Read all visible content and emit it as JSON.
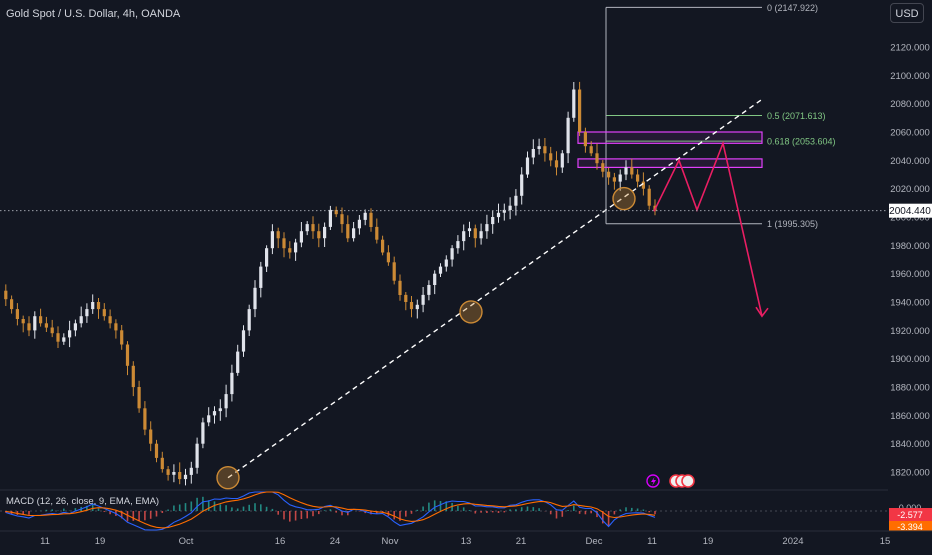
{
  "header": {
    "title": "Gold Spot / U.S. Dollar, 4h, OANDA",
    "currency": "USD"
  },
  "chart_data": {
    "type": "line",
    "title": "Gold Spot / U.S. Dollar, 4h, OANDA",
    "series": [
      {
        "values": [
          1948,
          1942,
          1935,
          1928,
          1925,
          1920,
          1930,
          1925,
          1922,
          1918,
          1912,
          1915,
          1920,
          1925,
          1930,
          1935,
          1940,
          1935,
          1930,
          1925,
          1920,
          1910,
          1895,
          1880,
          1865,
          1850,
          1840,
          1830,
          1822,
          1818,
          1820,
          1815,
          1818,
          1823,
          1840,
          1855,
          1860,
          1863,
          1865,
          1875,
          1890,
          1905,
          1920,
          1935,
          1950,
          1965,
          1978,
          1990,
          1985,
          1978,
          1975,
          1982,
          1990,
          1995,
          1990,
          1985,
          1993,
          2005,
          2002,
          1995,
          1985,
          1992,
          1998,
          2003,
          1993,
          1984,
          1975,
          1968,
          1955,
          1945,
          1940,
          1935,
          1938,
          1945,
          1952,
          1960,
          1965,
          1970,
          1978,
          1983,
          1990,
          1992,
          1985,
          1990,
          1995,
          2000,
          2003,
          2005,
          2008,
          2015,
          2030,
          2042,
          2048,
          2050,
          2045,
          2040,
          2035,
          2045,
          2070,
          2090,
          2060,
          2050,
          2045,
          2038,
          2032,
          2028,
          2025,
          2030,
          2035,
          2030,
          2025,
          2020,
          2008,
          2004.44
        ]
      }
    ],
    "current_price": "2004.440",
    "y_ticks": [
      "2120.000",
      "2100.000",
      "2080.000",
      "2060.000",
      "2040.000",
      "2020.000",
      "2000.000",
      "1980.000",
      "1960.000",
      "1940.000",
      "1920.000",
      "1900.000",
      "1880.000",
      "1860.000",
      "1840.000",
      "1820.000"
    ],
    "x_ticks": [
      "11",
      "19",
      "Oct",
      "16",
      "24",
      "Nov",
      "13",
      "21",
      "Dec",
      "11",
      "19",
      "2024",
      "15"
    ],
    "fib_levels": [
      {
        "label": "0 (2147.922)",
        "value": 2147.922,
        "color": "#b2b5be"
      },
      {
        "label": "0.5 (2071.613)",
        "value": 2071.613,
        "color": "#81c784"
      },
      {
        "label": "0.618 (2053.604)",
        "value": 2053.604,
        "color": "#81c784"
      },
      {
        "label": "1 (1995.305)",
        "value": 1995.305,
        "color": "#b2b5be"
      }
    ],
    "zones": [
      {
        "from": 2052,
        "to": 2060,
        "color": "#e040fb"
      },
      {
        "from": 2035,
        "to": 2041,
        "color": "#e040fb"
      }
    ],
    "trendline": {
      "from": 1816,
      "to": 2083,
      "style": "dashed"
    },
    "projection": [
      2004,
      2040,
      2005,
      2052,
      1930
    ],
    "indicator": {
      "title": "MACD (12, 26, close, 9, EMA, EMA)",
      "zero_label": "0.000",
      "macd_value": "-2.577",
      "signal_value": "-3.394"
    }
  },
  "colors": {
    "background": "#131722",
    "candle": "#cc8a35",
    "pattern": "#e91e63",
    "zone": "#e040fb",
    "macd_line": "#2962ff",
    "signal_line": "#ff6d00",
    "value_badge": "#f23645"
  }
}
